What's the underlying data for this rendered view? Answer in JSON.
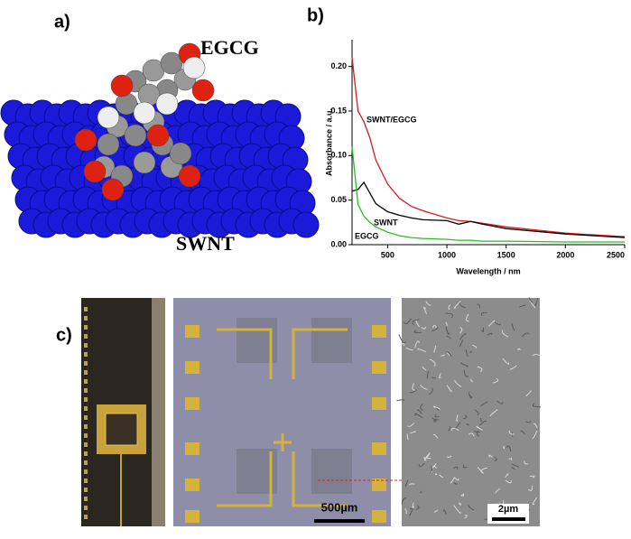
{
  "panels": {
    "a": {
      "label": "a)",
      "molecule": "EGCG",
      "tube": "SWNT"
    },
    "b": {
      "label": "b)"
    },
    "c": {
      "label": "c)",
      "scale_bar_middle": "500µm",
      "scale_bar_right": "2µm"
    }
  },
  "chart_data": {
    "type": "line",
    "y_label": "Absorbance / a.u.",
    "x_label": "Wavelength / nm",
    "x": [
      200,
      250,
      300,
      350,
      400,
      500,
      600,
      700,
      800,
      1000,
      1100,
      1200,
      1300,
      1500,
      2000,
      2500
    ],
    "series": [
      {
        "name": "SWNT/EGCG",
        "color": "#d81c1c",
        "values": [
          0.21,
          0.15,
          0.138,
          0.12,
          0.095,
          0.068,
          0.052,
          0.043,
          0.038,
          0.03,
          0.027,
          0.026,
          0.024,
          0.02,
          0.013,
          0.009
        ]
      },
      {
        "name": "SWNT",
        "color": "#000000",
        "values": [
          0.06,
          0.062,
          0.07,
          0.058,
          0.046,
          0.037,
          0.033,
          0.03,
          0.028,
          0.027,
          0.023,
          0.026,
          0.023,
          0.018,
          0.012,
          0.008
        ]
      },
      {
        "name": "EGCG",
        "color": "#22c022",
        "values": [
          0.11,
          0.045,
          0.032,
          0.025,
          0.02,
          0.014,
          0.01,
          0.008,
          0.007,
          0.006,
          0.005,
          0.005,
          0.004,
          0.004,
          0.003,
          0.003
        ]
      }
    ],
    "xlim": [
      200,
      2500
    ],
    "ylim": [
      0,
      0.23
    ],
    "xticks": [
      500,
      1000,
      1500,
      2000,
      2500
    ],
    "yticks": [
      {
        "value": 0,
        "label": "0.00"
      },
      {
        "value": 0.05,
        "label": "0.05"
      },
      {
        "value": 0.1,
        "label": "0.10"
      },
      {
        "value": 0.15,
        "label": "0.15"
      },
      {
        "value": 0.2,
        "label": "0.20"
      }
    ]
  }
}
